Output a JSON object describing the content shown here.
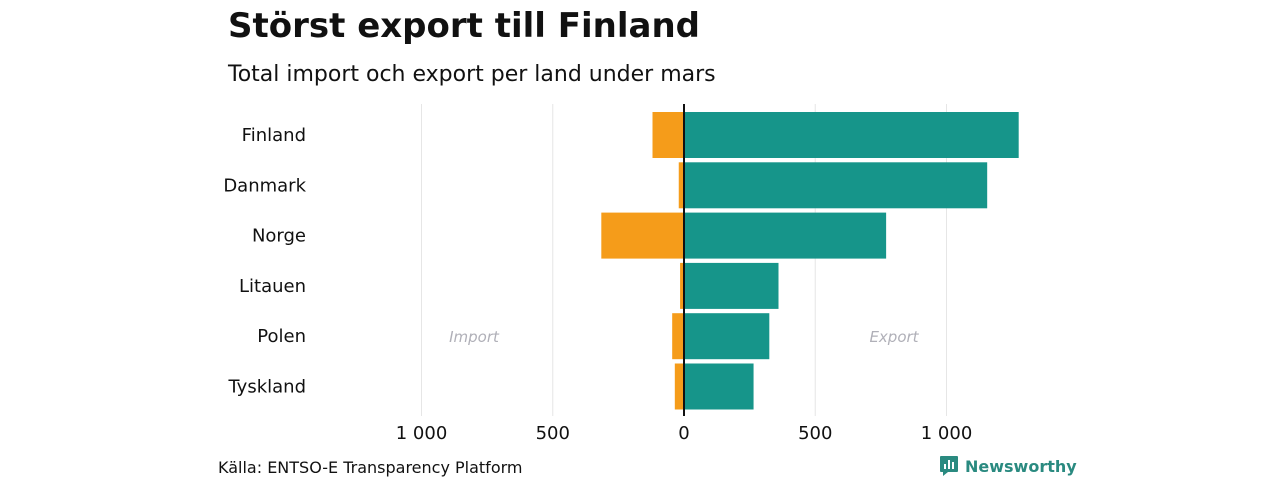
{
  "title": "Störst export till Finland",
  "subtitle": "Total import och export per land under mars",
  "source": "Källa: ENTSO-E Transparency Platform",
  "brand": "Newsworthy",
  "colors": {
    "import": "#F59C1A",
    "export": "#16958A",
    "grid": "#e6e6e6",
    "annotation": "#b0b0b8",
    "brand": "#2a8a80"
  },
  "chart_data": {
    "type": "bar",
    "orientation": "horizontal-diverging",
    "categories": [
      "Finland",
      "Danmark",
      "Norge",
      "Litauen",
      "Polen",
      "Tyskland"
    ],
    "series": [
      {
        "name": "Import",
        "values": [
          120,
          20,
          315,
          15,
          45,
          35
        ]
      },
      {
        "name": "Export",
        "values": [
          1275,
          1155,
          770,
          360,
          325,
          265
        ]
      }
    ],
    "xlim": [
      -1000,
      1000
    ],
    "xticks": [
      -1000,
      -500,
      0,
      500,
      1000
    ],
    "xtick_labels": [
      "1 000",
      "500",
      "0",
      "500",
      "1 000"
    ],
    "annotations": [
      "Import",
      "Export"
    ],
    "grid": true
  }
}
